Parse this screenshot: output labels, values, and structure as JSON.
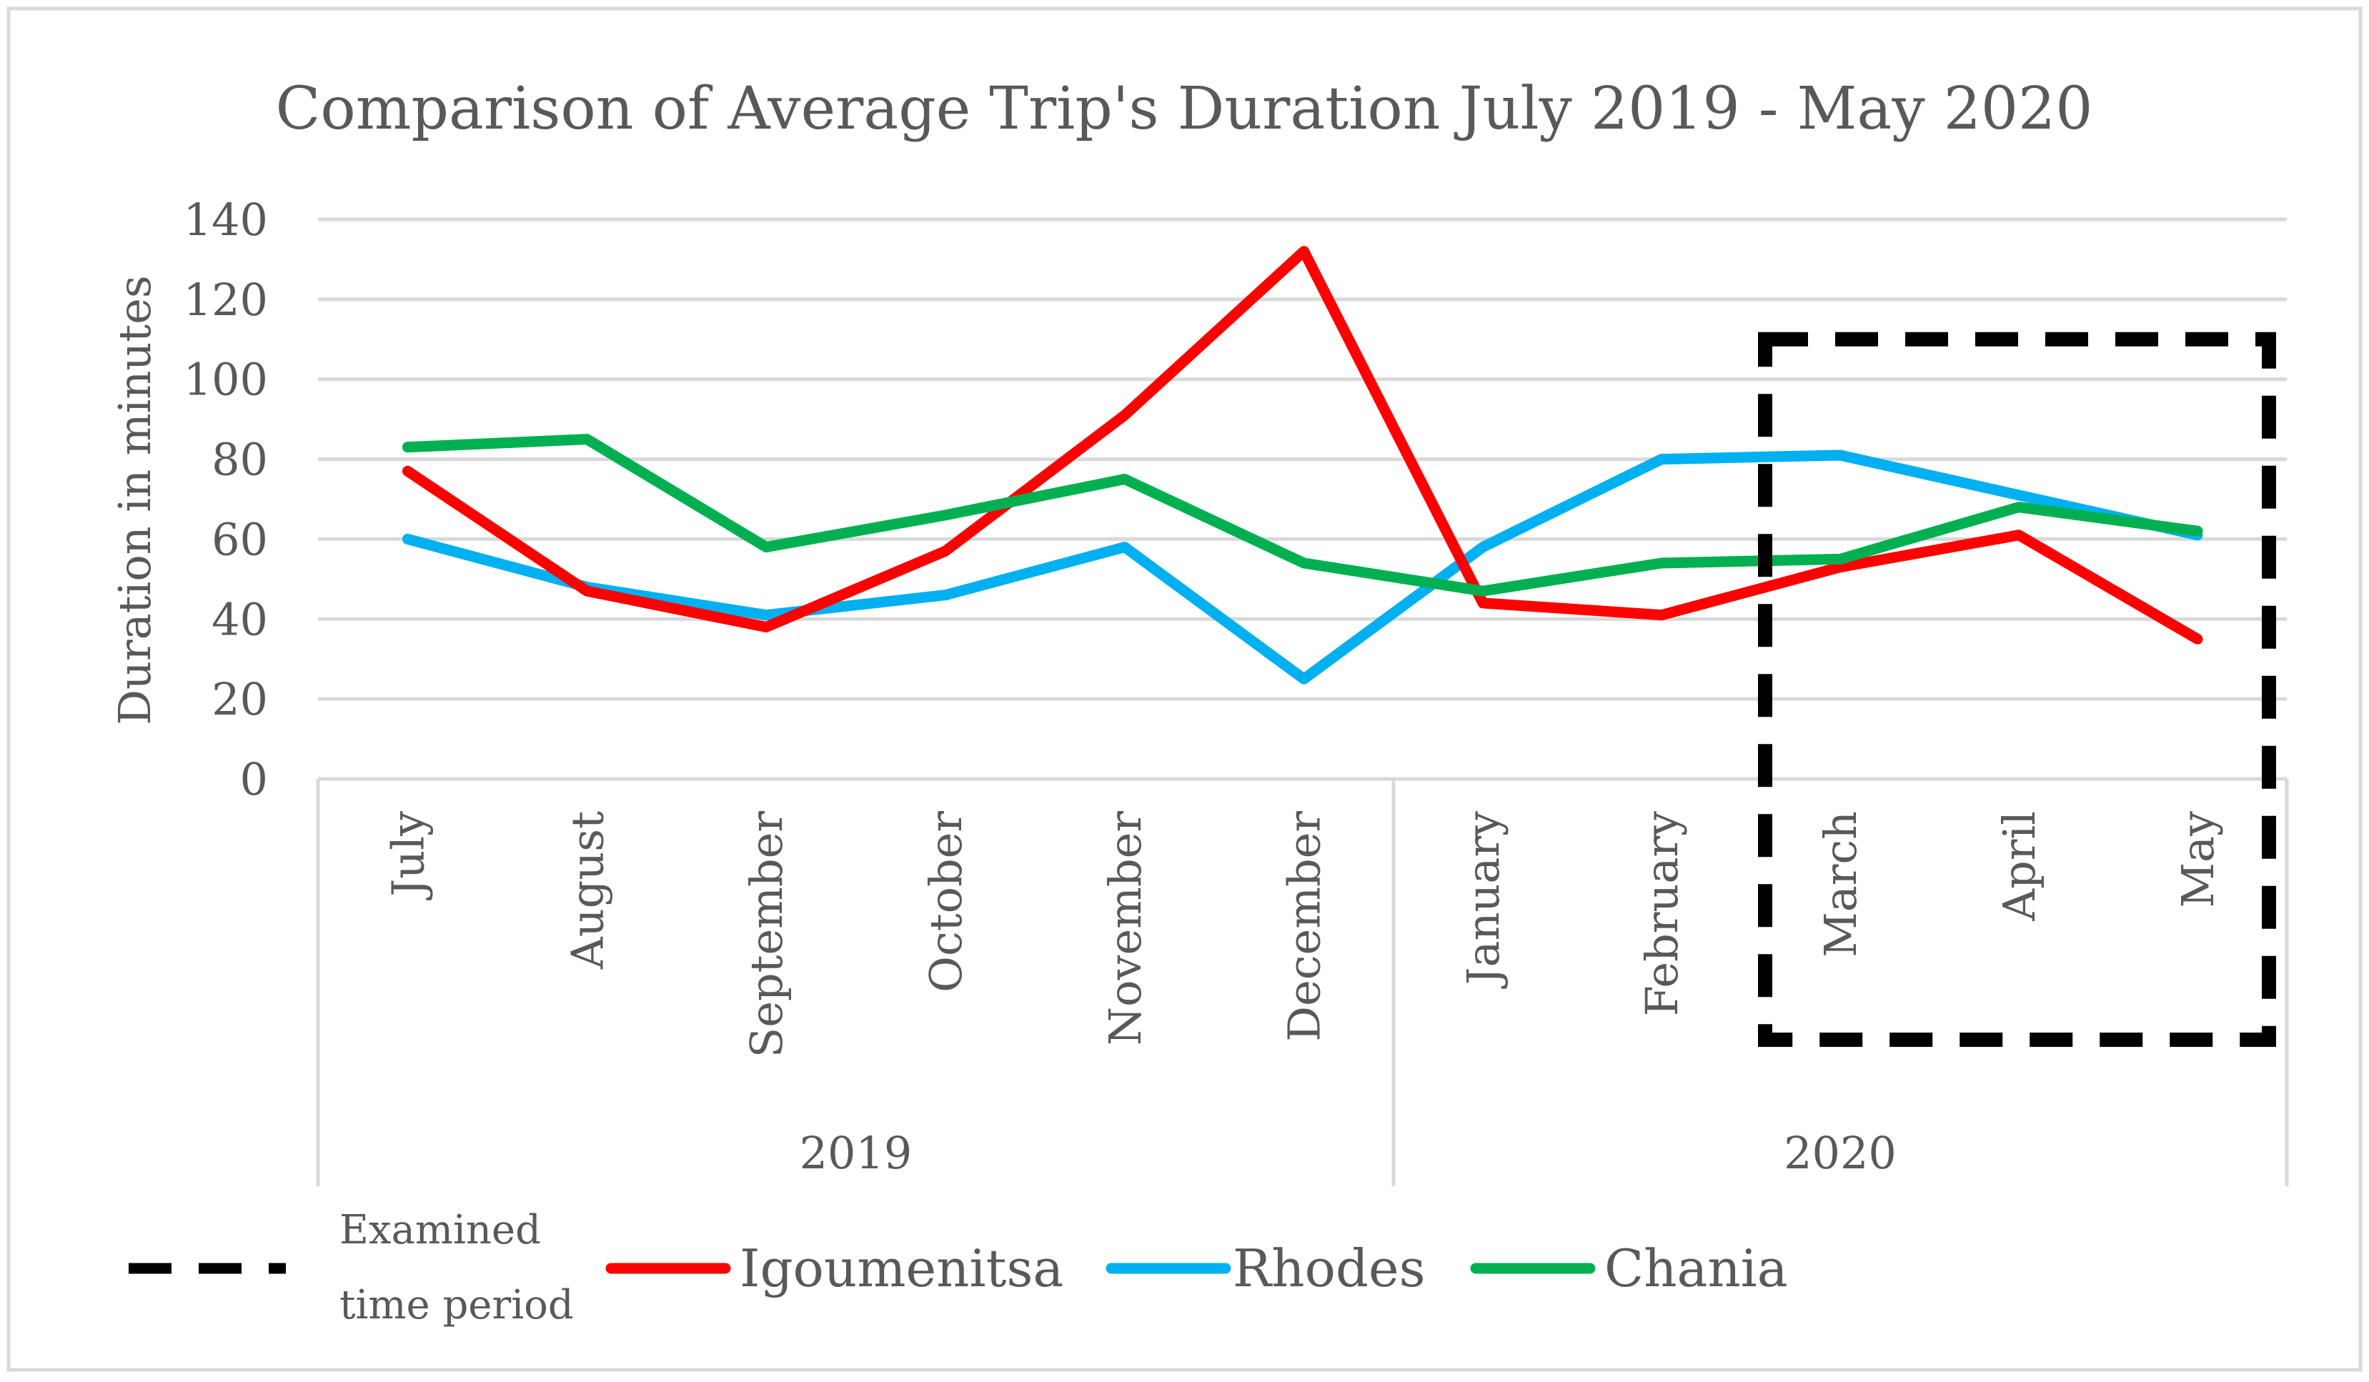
{
  "chart_data": {
    "type": "line",
    "title": "Comparison of Average Trip's Duration July 2019 - May 2020",
    "xlabel": "",
    "ylabel": "Duration in minutes",
    "ylim": [
      0,
      140
    ],
    "yticks": [
      "0",
      "20",
      "40",
      "60",
      "80",
      "100",
      "120",
      "140"
    ],
    "grid": true,
    "categories": [
      "July",
      "August",
      "September",
      "October",
      "November",
      "December",
      "January",
      "February",
      "March",
      "April",
      "May"
    ],
    "groups": [
      {
        "label": "2019",
        "count": 6
      },
      {
        "label": "2020",
        "count": 5
      }
    ],
    "series": [
      {
        "name": "Igoumenitsa",
        "color": "#ff0000",
        "values": [
          77,
          47,
          38,
          57,
          91,
          132,
          44,
          41,
          53,
          61,
          35
        ]
      },
      {
        "name": "Rhodes",
        "color": "#00b0f0",
        "values": [
          60,
          48,
          41,
          46,
          58,
          25,
          58,
          80,
          81,
          71,
          61
        ]
      },
      {
        "name": "Chania",
        "color": "#00b050",
        "values": [
          83,
          85,
          58,
          66,
          75,
          54,
          47,
          54,
          55,
          68,
          62
        ]
      }
    ],
    "highlight": {
      "label_line1": "Examined",
      "label_line2": "time period",
      "from_category": "March",
      "to_category": "May",
      "top_value": 110
    },
    "legend_position": "bottom"
  }
}
